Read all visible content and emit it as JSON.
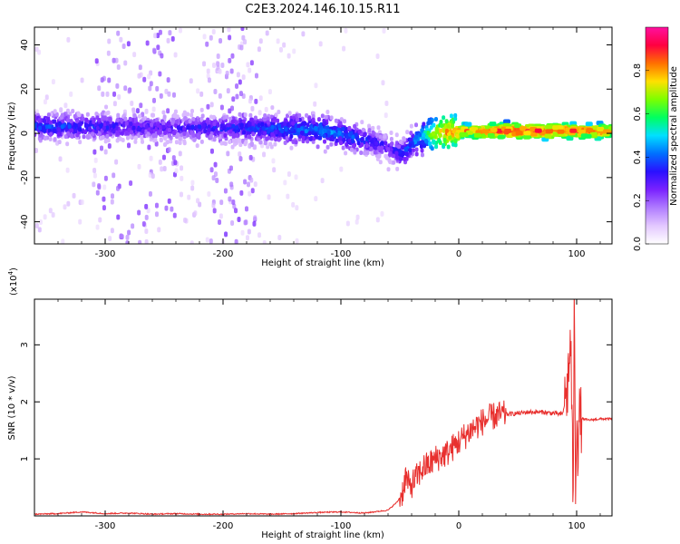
{
  "title": "C2E3.2024.146.10.15.R11",
  "colors": {
    "snr_line": "#e8302e",
    "spec_cmap": [
      "#ffffff",
      "#e3c8ff",
      "#b07cff",
      "#7a22ff",
      "#2a10ff",
      "#0070ff",
      "#00e0ff",
      "#00ff60",
      "#7cff00",
      "#ffe000",
      "#ff7000",
      "#ff0040",
      "#ff10a0"
    ]
  },
  "colorbar": {
    "label": "Normalized spectral amplitude",
    "ticks": [
      {
        "value": 0.0,
        "label": "0.0"
      },
      {
        "value": 0.2,
        "label": "0.2"
      },
      {
        "value": 0.4,
        "label": "0.4"
      },
      {
        "value": 0.6,
        "label": "0.6"
      },
      {
        "value": 0.8,
        "label": "0.8"
      }
    ],
    "range": [
      0,
      1
    ]
  },
  "chart_data": [
    {
      "type": "heatmap",
      "xlabel": "Height of straight line (km)",
      "ylabel": "Frequency (Hz)",
      "xlim": [
        -360,
        130
      ],
      "ylim": [
        -50,
        48
      ],
      "xticks": [
        {
          "value": -300,
          "label": "-300"
        },
        {
          "value": -200,
          "label": "-200"
        },
        {
          "value": -100,
          "label": "-100"
        },
        {
          "value": 0,
          "label": "0"
        },
        {
          "value": 100,
          "label": "100"
        }
      ],
      "yticks": [
        {
          "value": -40,
          "label": "-40"
        },
        {
          "value": -20,
          "label": "-20"
        },
        {
          "value": 0,
          "label": "0"
        },
        {
          "value": 20,
          "label": "20"
        },
        {
          "value": 40,
          "label": "40"
        }
      ],
      "ridge": {
        "x": [
          -360,
          -300,
          -250,
          -200,
          -150,
          -120,
          -100,
          -80,
          -60,
          -50,
          -45,
          -40,
          -30,
          -20,
          -10,
          0,
          20,
          50,
          80,
          90,
          100,
          130
        ],
        "f": [
          3,
          3,
          2.5,
          2.5,
          2,
          1.5,
          0,
          -3,
          -6,
          -9,
          -8,
          -4,
          -1,
          0,
          0.5,
          1,
          1,
          1,
          1,
          1.5,
          1,
          1
        ]
      },
      "amplitude": {
        "x": [
          -360,
          -300,
          -250,
          -200,
          -150,
          -120,
          -100,
          -80,
          -60,
          -40,
          -30,
          -20,
          -10,
          0,
          20,
          50,
          80,
          100,
          130
        ],
        "v": [
          0.38,
          0.34,
          0.3,
          0.34,
          0.4,
          0.44,
          0.42,
          0.36,
          0.3,
          0.4,
          0.52,
          0.72,
          0.82,
          0.8,
          0.85,
          0.9,
          0.88,
          0.85,
          0.84
        ]
      }
    },
    {
      "type": "line",
      "xlabel": "Height of straight line (km)",
      "ylabel": "SNR (10 * v/v)",
      "y_multiplier_label": "(x10",
      "y_multiplier_exp": "4",
      "y_multiplier_close": ")",
      "xlim": [
        -360,
        130
      ],
      "ylim": [
        0,
        3.8
      ],
      "xticks": [
        {
          "value": -300,
          "label": "-300"
        },
        {
          "value": -200,
          "label": "-200"
        },
        {
          "value": -100,
          "label": "-100"
        },
        {
          "value": 0,
          "label": "0"
        },
        {
          "value": 100,
          "label": "100"
        }
      ],
      "yticks": [
        {
          "value": 1,
          "label": "1"
        },
        {
          "value": 2,
          "label": "2"
        },
        {
          "value": 3,
          "label": "3"
        }
      ],
      "series": [
        {
          "x": [
            -360,
            -340,
            -320,
            -300,
            -280,
            -260,
            -240,
            -220,
            -200,
            -180,
            -160,
            -140,
            -120,
            -100,
            -80,
            -60,
            -52,
            -48,
            -45,
            -42,
            -40,
            -35,
            -30,
            -25,
            -20,
            -15,
            -10,
            -5,
            0,
            10,
            20,
            30,
            40,
            50,
            60,
            70,
            80,
            88,
            92,
            95,
            97,
            98,
            99,
            100,
            101,
            102,
            105,
            110,
            120,
            130
          ],
          "y": [
            0.03,
            0.04,
            0.07,
            0.04,
            0.05,
            0.03,
            0.04,
            0.03,
            0.03,
            0.04,
            0.03,
            0.04,
            0.06,
            0.07,
            0.05,
            0.1,
            0.25,
            0.4,
            0.7,
            0.5,
            0.55,
            0.7,
            0.85,
            0.9,
            1.0,
            1.05,
            1.1,
            1.2,
            1.3,
            1.5,
            1.65,
            1.75,
            1.78,
            1.8,
            1.82,
            1.82,
            1.8,
            1.78,
            2.2,
            3.1,
            0.2,
            3.8,
            0.4,
            2.0,
            1.2,
            1.7,
            1.7,
            1.68,
            1.7,
            1.7
          ]
        }
      ]
    }
  ]
}
